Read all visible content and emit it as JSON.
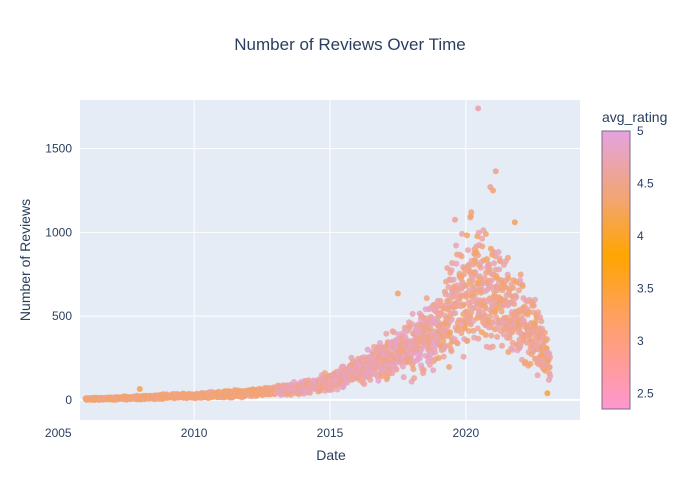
{
  "chart_data": {
    "type": "scatter",
    "title": "Number of Reviews Over Time",
    "xlabel": "Date",
    "ylabel": "Number of Reviews",
    "xlim": [
      2005.8,
      2024.2
    ],
    "ylim": [
      -120,
      1790
    ],
    "x_ticks": [
      2005,
      2010,
      2015,
      2020
    ],
    "x_tick_labels": [
      "2005",
      "2010",
      "2015",
      "2020"
    ],
    "y_ticks": [
      0,
      500,
      1000,
      1500
    ],
    "y_tick_labels": [
      "0",
      "500",
      "1000",
      "1500"
    ],
    "grid": true,
    "legend": "none",
    "colorbar": {
      "title": "avg_rating",
      "range": [
        2.35,
        5.0
      ],
      "ticks": [
        2.5,
        3,
        3.5,
        4,
        4.5,
        5
      ],
      "tick_labels": [
        "2.5",
        "3",
        "3.5",
        "4",
        "4.5",
        "5"
      ],
      "colorscale": [
        [
          0.0,
          "#ff97d0"
        ],
        [
          0.35,
          "#ffa15a"
        ],
        [
          0.55,
          "#ffa500"
        ],
        [
          0.75,
          "#f3a56f"
        ],
        [
          1.0,
          "#e4a3e0"
        ]
      ]
    },
    "trend": [
      [
        2006.0,
        5
      ],
      [
        2007.0,
        8
      ],
      [
        2008.0,
        14
      ],
      [
        2009.0,
        20
      ],
      [
        2010.0,
        24
      ],
      [
        2011.0,
        30
      ],
      [
        2012.0,
        42
      ],
      [
        2013.0,
        55
      ],
      [
        2014.0,
        70
      ],
      [
        2015.0,
        110
      ],
      [
        2016.0,
        170
      ],
      [
        2017.0,
        240
      ],
      [
        2018.0,
        320
      ],
      [
        2019.0,
        430
      ],
      [
        2019.5,
        560
      ],
      [
        2020.0,
        640
      ],
      [
        2020.5,
        690
      ],
      [
        2021.0,
        660
      ],
      [
        2021.5,
        560
      ],
      [
        2022.0,
        480
      ],
      [
        2022.5,
        390
      ],
      [
        2023.0,
        260
      ],
      [
        2023.1,
        150
      ]
    ],
    "outliers": [
      {
        "x": 2020.45,
        "y": 1740,
        "rating": 4.7
      },
      {
        "x": 2021.1,
        "y": 1365,
        "rating": 4.5
      },
      {
        "x": 2020.9,
        "y": 1270,
        "rating": 4.6
      },
      {
        "x": 2021.0,
        "y": 1250,
        "rating": 4.4
      },
      {
        "x": 2017.5,
        "y": 635,
        "rating": 4.3
      },
      {
        "x": 2008.0,
        "y": 65,
        "rating": 4.2
      },
      {
        "x": 2023.0,
        "y": 40,
        "rating": 4.1
      },
      {
        "x": 2021.8,
        "y": 1060,
        "rating": 4.3
      },
      {
        "x": 2020.2,
        "y": 1120,
        "rating": 4.5
      },
      {
        "x": 2019.6,
        "y": 1075,
        "rating": 4.6
      }
    ]
  }
}
